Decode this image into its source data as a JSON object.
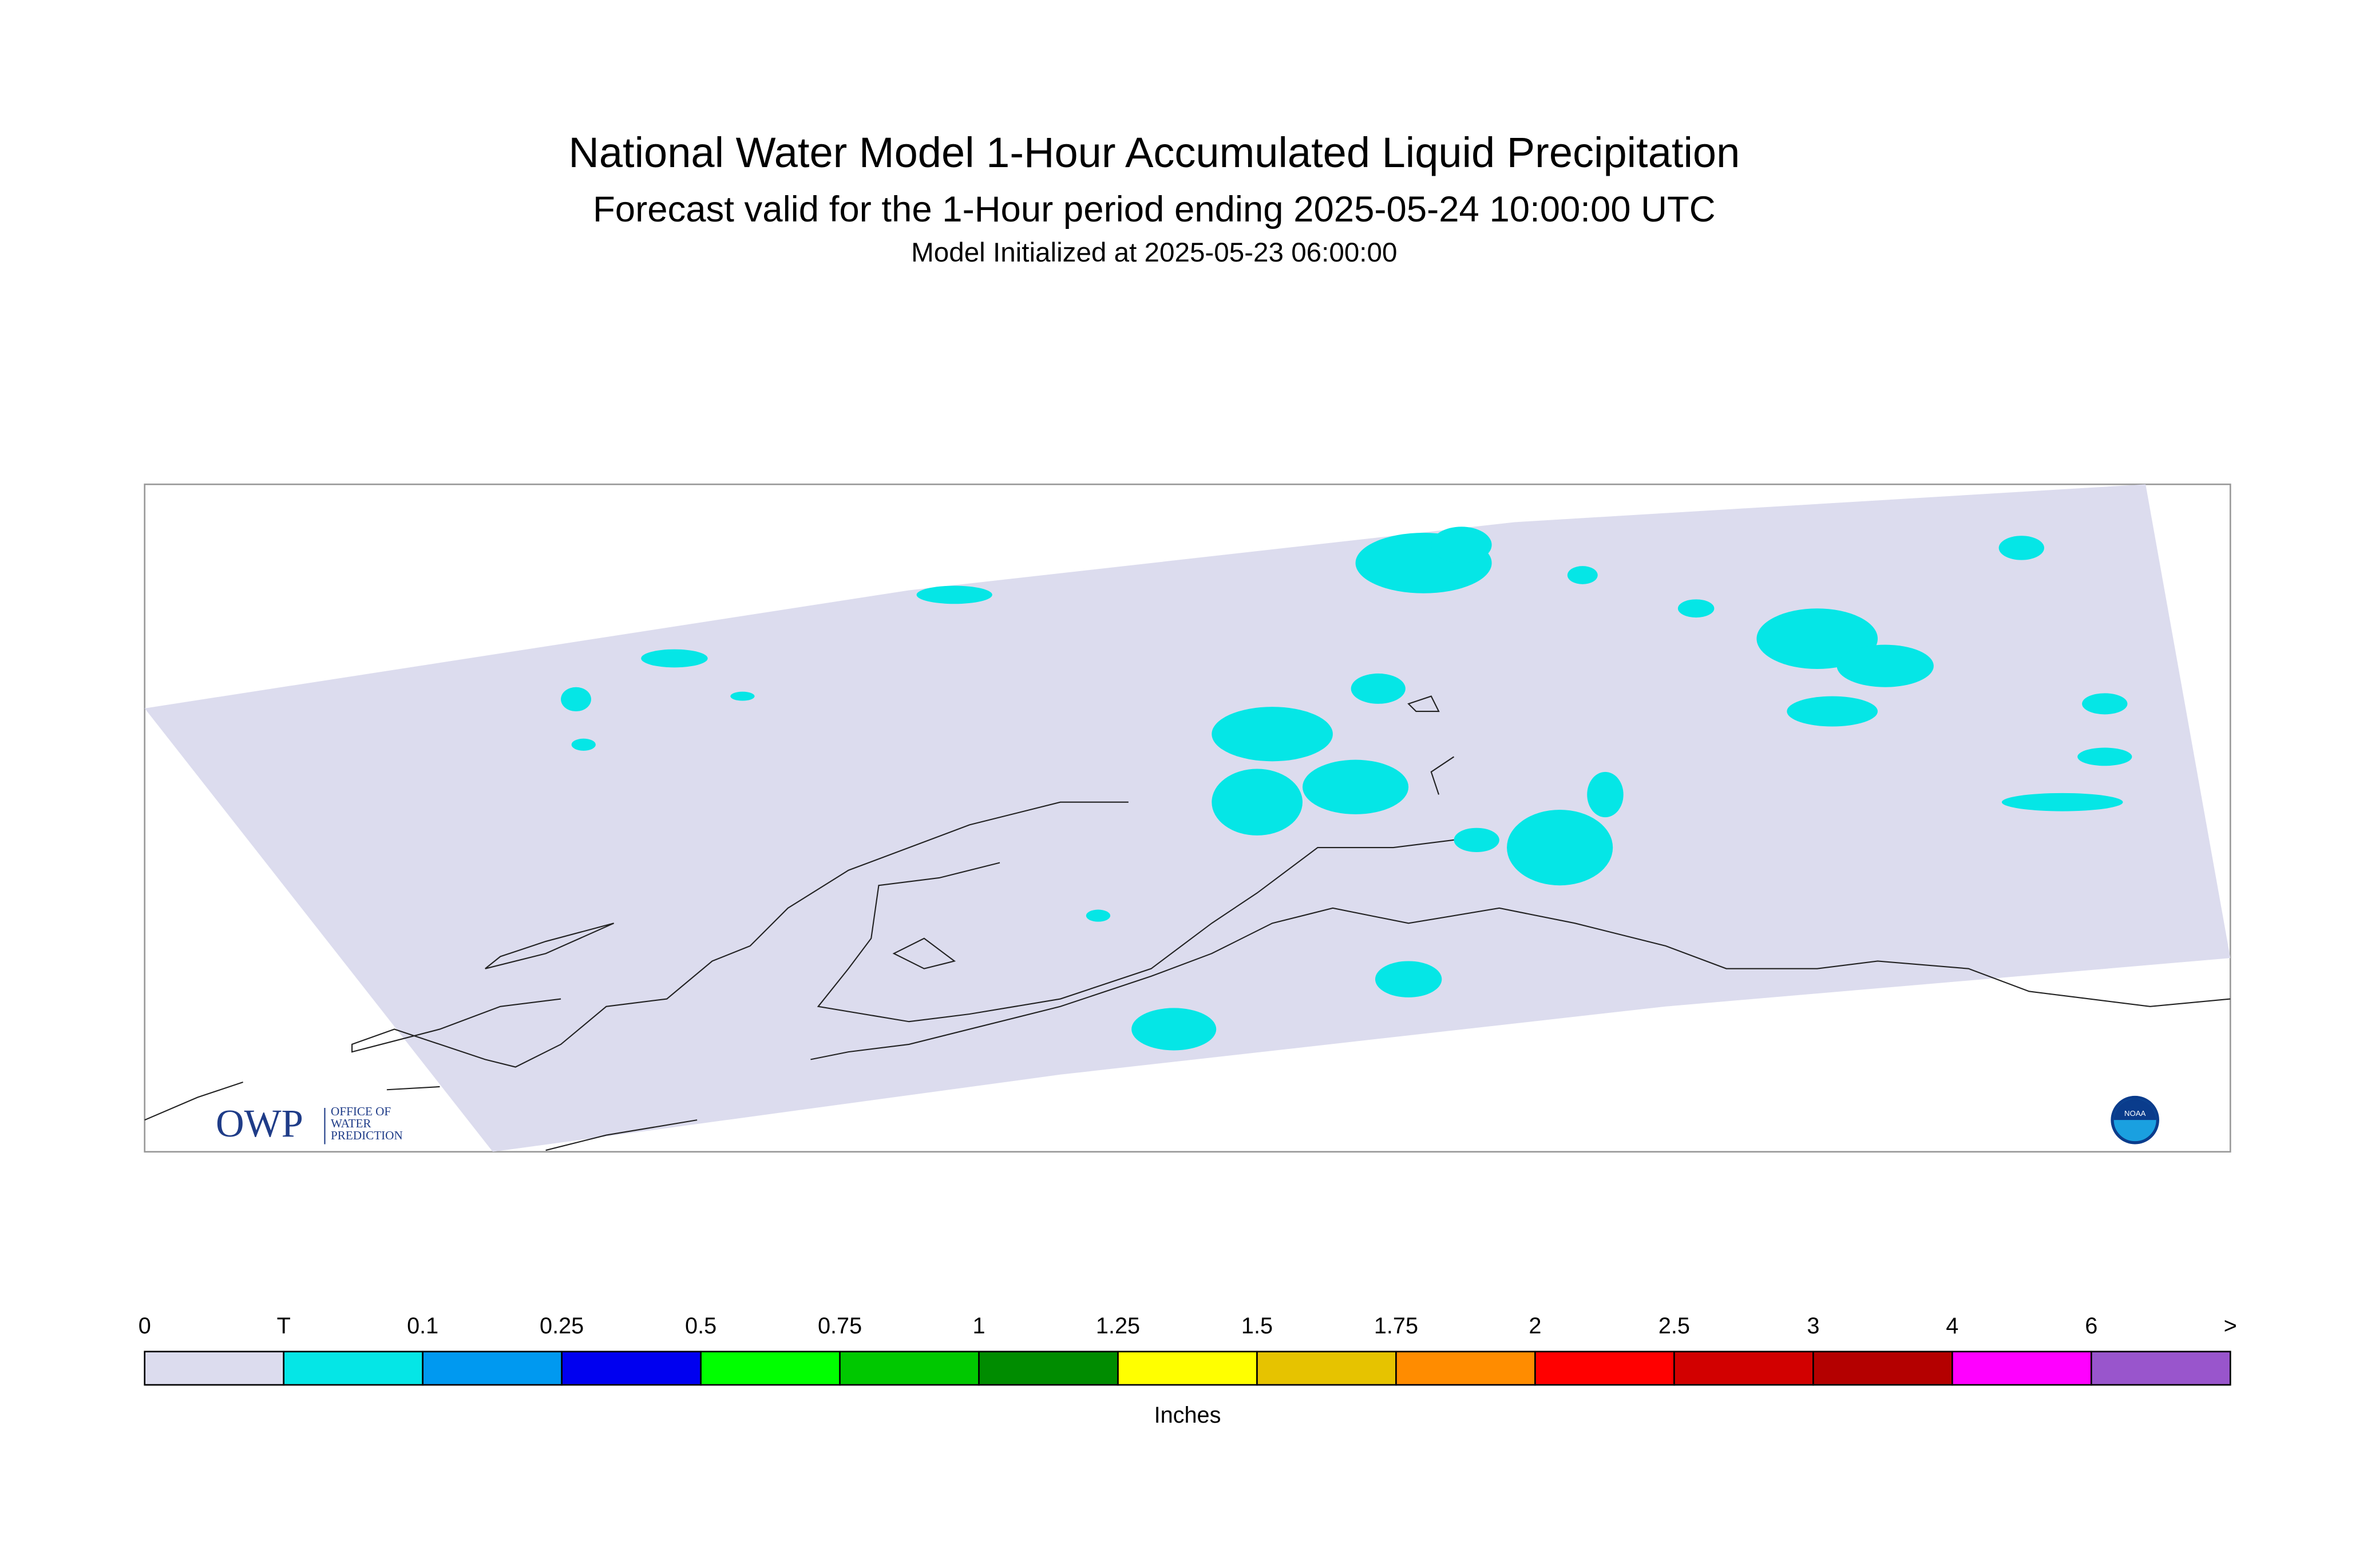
{
  "header": {
    "title": "National Water Model 1-Hour Accumulated Liquid Precipitation",
    "subtitle": "Forecast valid for the 1-Hour period ending 2025-05-24 10:00:00 UTC",
    "initialized": "Model Initialized at 2025-05-23 06:00:00"
  },
  "logos": {
    "owp": "OWP",
    "owp_lines": [
      "OFFICE OF",
      "WATER",
      "PREDICTION"
    ],
    "noaa": "NOAA"
  },
  "legend": {
    "labels": [
      "0",
      "T",
      "0.1",
      "0.25",
      "0.5",
      "0.75",
      "1",
      "1.25",
      "1.5",
      "1.75",
      "2",
      "2.5",
      "3",
      "4",
      "6",
      ">"
    ],
    "colors": [
      "#dcdcee",
      "#05e6e6",
      "#0099f0",
      "#0000f0",
      "#00ff00",
      "#00c800",
      "#008c00",
      "#ffff00",
      "#e6c300",
      "#ff8c00",
      "#ff0000",
      "#d20000",
      "#b40000",
      "#ff00ff",
      "#9955cc"
    ],
    "unit": "Inches"
  }
}
